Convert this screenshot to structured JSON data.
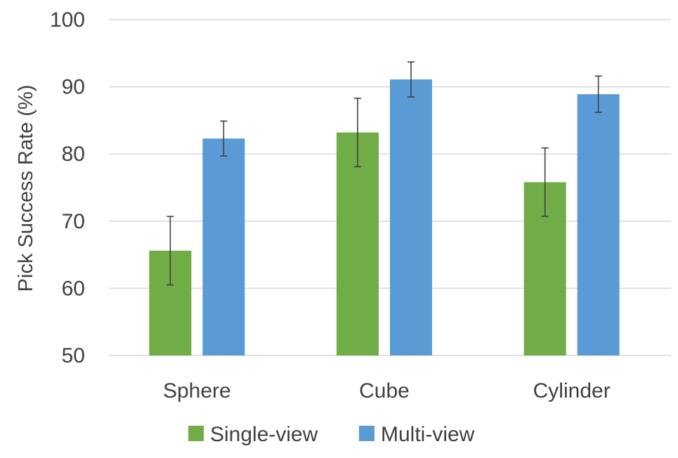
{
  "chart_data": {
    "type": "bar",
    "title": "",
    "xlabel": "",
    "ylabel": "Pick Success Rate (%)",
    "ylim": [
      50,
      100
    ],
    "yticks": [
      50,
      60,
      70,
      80,
      90,
      100
    ],
    "grid": true,
    "legend_position": "bottom",
    "categories": [
      "Sphere",
      "Cube",
      "Cylinder"
    ],
    "series": [
      {
        "name": "Single-view",
        "color": "#70ad47",
        "values": [
          65.6,
          83.2,
          75.8
        ],
        "error": [
          5.1,
          5.1,
          5.1
        ]
      },
      {
        "name": "Multi-view",
        "color": "#5b9bd5",
        "values": [
          82.3,
          91.1,
          88.9
        ],
        "error": [
          2.6,
          2.6,
          2.7
        ]
      }
    ]
  }
}
